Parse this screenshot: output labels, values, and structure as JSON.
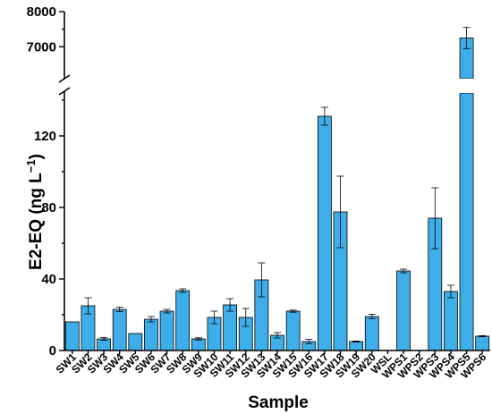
{
  "chart_data": {
    "type": "bar",
    "xlabel": "Sample",
    "ylabel": "E2-EQ (ng L",
    "ylabel_superscript": "−1",
    "ylabel_close": ")",
    "bar_color": "#3daee9",
    "axis_break": {
      "lower_range": [
        0,
        140
      ],
      "upper_range": [
        6600,
        8000
      ]
    },
    "y_ticks": [
      0,
      40,
      80,
      120,
      7000,
      8000
    ],
    "categories": [
      "SW1",
      "SW2",
      "SW3",
      "SW4",
      "SW5",
      "SW6",
      "SW7",
      "SW8",
      "SW9",
      "SW10",
      "SW11",
      "SW12",
      "SW13",
      "SW14",
      "SW15",
      "SW16",
      "SW17",
      "SW18",
      "SW19",
      "SW20",
      "WSL",
      "WPS1",
      "WPS2",
      "WPS3",
      "WPS4",
      "WPS5",
      "WPS6"
    ],
    "values": [
      16,
      25,
      6.5,
      23,
      9.5,
      17.5,
      22,
      33.5,
      6.5,
      18.5,
      25.5,
      18.5,
      39.5,
      8.5,
      22,
      5,
      131,
      77.5,
      5,
      19,
      0,
      44.5,
      0,
      74,
      33,
      7250,
      8
    ],
    "errors": [
      0,
      4.5,
      0.8,
      1.3,
      0,
      1.5,
      1,
      1,
      0.6,
      3.5,
      3.5,
      5,
      9.5,
      1.5,
      0.6,
      1.2,
      5,
      20,
      0.3,
      1.3,
      0,
      1,
      0,
      17,
      3.5,
      300,
      0.3
    ]
  }
}
